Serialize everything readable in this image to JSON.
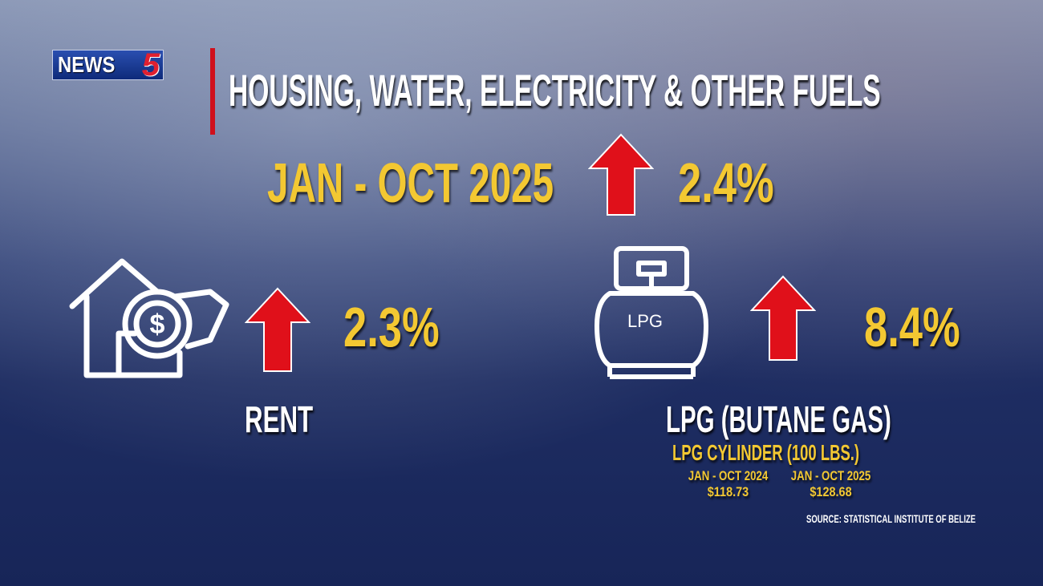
{
  "logo": {
    "text": "NEWS",
    "number": "5"
  },
  "title": "HOUSING, WATER, ELECTRICITY & OTHER FUELS",
  "period": "JAN - OCT 2025",
  "overall_change": "2.4%",
  "rent": {
    "label": "RENT",
    "change": "2.3%"
  },
  "lpg": {
    "label": "LPG (BUTANE GAS)",
    "change": "8.4%",
    "icon_text": "LPG",
    "subtitle": "LPG CYLINDER (100 LBS.)",
    "prices": [
      {
        "period": "JAN - OCT 2024",
        "price": "$118.73"
      },
      {
        "period": "JAN - OCT 2025",
        "price": "$128.68"
      }
    ]
  },
  "source": "SOURCE: STATISTICAL INSTITUTE OF BELIZE",
  "colors": {
    "accent_yellow": "#f3c832",
    "arrow_red": "#e0101a",
    "bar_red": "#d0101c"
  }
}
